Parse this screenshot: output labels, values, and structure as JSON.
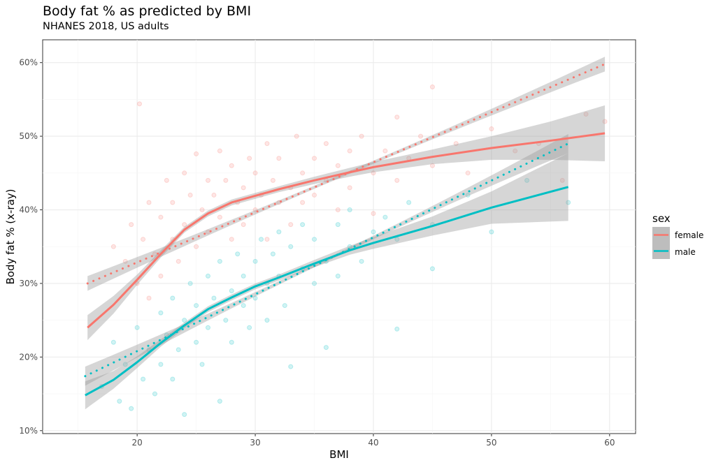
{
  "chart_data": {
    "type": "scatter",
    "title": "Body fat % as predicted by BMI",
    "subtitle": "NHANES 2018, US adults",
    "xlabel": "BMI",
    "ylabel": "Body fat % (x-ray)",
    "xlim": [
      12,
      62.2
    ],
    "ylim": [
      9.6,
      63.1
    ],
    "xticks": [
      20,
      30,
      40,
      50,
      60
    ],
    "yticks": [
      10,
      20,
      30,
      40,
      50,
      60
    ],
    "ytick_labels": [
      "10%",
      "20%",
      "30%",
      "40%",
      "50%",
      "60%"
    ],
    "grid": true,
    "legend": {
      "title": "sex",
      "position": "right",
      "entries": [
        "female",
        "male"
      ]
    },
    "series": [
      {
        "name": "female",
        "color": "#F8766D",
        "points": [
          [
            18,
            35
          ],
          [
            19,
            33
          ],
          [
            19.5,
            38
          ],
          [
            20,
            30
          ],
          [
            20.2,
            54.4
          ],
          [
            20.5,
            36
          ],
          [
            21,
            41
          ],
          [
            21,
            28
          ],
          [
            21.5,
            34
          ],
          [
            22,
            39
          ],
          [
            22,
            31
          ],
          [
            22.5,
            44
          ],
          [
            23,
            36
          ],
          [
            23,
            41
          ],
          [
            23.5,
            33
          ],
          [
            24,
            45
          ],
          [
            24,
            38
          ],
          [
            24.5,
            42
          ],
          [
            25,
            35
          ],
          [
            25,
            47.6
          ],
          [
            25.5,
            40
          ],
          [
            26,
            44
          ],
          [
            26,
            37
          ],
          [
            26.5,
            42
          ],
          [
            27,
            48
          ],
          [
            27,
            39
          ],
          [
            27.5,
            44
          ],
          [
            28,
            36
          ],
          [
            28,
            46
          ],
          [
            28.5,
            41
          ],
          [
            29,
            43
          ],
          [
            29,
            38
          ],
          [
            29.5,
            47
          ],
          [
            30,
            40
          ],
          [
            30,
            45
          ],
          [
            30.5,
            42
          ],
          [
            31,
            49
          ],
          [
            31,
            36
          ],
          [
            31.5,
            44
          ],
          [
            32,
            41
          ],
          [
            32,
            47
          ],
          [
            33,
            43
          ],
          [
            33,
            38
          ],
          [
            33.5,
            50
          ],
          [
            34,
            45
          ],
          [
            34,
            41
          ],
          [
            35,
            47
          ],
          [
            35,
            42
          ],
          [
            36,
            49
          ],
          [
            36,
            44
          ],
          [
            37,
            40
          ],
          [
            37,
            46
          ],
          [
            38,
            48
          ],
          [
            38,
            43
          ],
          [
            39,
            50
          ],
          [
            40,
            45
          ],
          [
            40,
            39.5
          ],
          [
            41,
            48
          ],
          [
            42,
            52.6
          ],
          [
            42,
            44
          ],
          [
            43,
            47
          ],
          [
            44,
            50
          ],
          [
            45,
            56.7
          ],
          [
            45,
            46
          ],
          [
            47,
            49
          ],
          [
            48,
            45
          ],
          [
            50,
            51
          ],
          [
            52,
            48
          ],
          [
            54,
            49
          ],
          [
            56,
            44
          ],
          [
            58,
            53
          ],
          [
            59.6,
            52
          ]
        ],
        "loess": [
          [
            15.8,
            24.0
          ],
          [
            18,
            27.1
          ],
          [
            20,
            30.5
          ],
          [
            22,
            34.0
          ],
          [
            24,
            37.3
          ],
          [
            26,
            39.5
          ],
          [
            28,
            41.0
          ],
          [
            30,
            41.9
          ],
          [
            32,
            42.8
          ],
          [
            35,
            44.0
          ],
          [
            38,
            45.1
          ],
          [
            40,
            45.8
          ],
          [
            45,
            47.2
          ],
          [
            50,
            48.4
          ],
          [
            55,
            49.4
          ],
          [
            59.6,
            50.4
          ]
        ],
        "loess_band": [
          [
            1.7
          ],
          [
            1.2
          ],
          [
            0.7
          ],
          [
            0.5
          ],
          [
            0.4
          ],
          [
            0.4
          ],
          [
            0.4
          ],
          [
            0.4
          ],
          [
            0.4
          ],
          [
            0.5
          ],
          [
            0.6
          ],
          [
            0.7
          ],
          [
            1.0
          ],
          [
            1.6
          ],
          [
            2.6
          ],
          [
            3.8
          ]
        ],
        "linear": {
          "x": [
            15.8,
            59.6
          ],
          "y": [
            30.0,
            59.8
          ],
          "band_ends": 1.0
        }
      },
      {
        "name": "male",
        "color": "#00BFC4",
        "points": [
          [
            17,
            16
          ],
          [
            18,
            22
          ],
          [
            18.5,
            14
          ],
          [
            19,
            19
          ],
          [
            19.5,
            13
          ],
          [
            20,
            24
          ],
          [
            20.5,
            17
          ],
          [
            21,
            21
          ],
          [
            21.5,
            15
          ],
          [
            22,
            26
          ],
          [
            22,
            19
          ],
          [
            22.5,
            23
          ],
          [
            23,
            17
          ],
          [
            23,
            28
          ],
          [
            23.5,
            21
          ],
          [
            24,
            25
          ],
          [
            24,
            12.2
          ],
          [
            24.5,
            30
          ],
          [
            25,
            22
          ],
          [
            25,
            27
          ],
          [
            25.5,
            19
          ],
          [
            26,
            31
          ],
          [
            26,
            24
          ],
          [
            26.5,
            28
          ],
          [
            27,
            14
          ],
          [
            27,
            33
          ],
          [
            27.5,
            25
          ],
          [
            28,
            29
          ],
          [
            28,
            22
          ],
          [
            28.5,
            34
          ],
          [
            29,
            27
          ],
          [
            29,
            31
          ],
          [
            29.5,
            24
          ],
          [
            30,
            33
          ],
          [
            30,
            28
          ],
          [
            30.5,
            36
          ],
          [
            31,
            30
          ],
          [
            31,
            25
          ],
          [
            31.5,
            34
          ],
          [
            32,
            31
          ],
          [
            32,
            37
          ],
          [
            32.5,
            27
          ],
          [
            33,
            35
          ],
          [
            33,
            18.7
          ],
          [
            34,
            32
          ],
          [
            34,
            38
          ],
          [
            35,
            30
          ],
          [
            35,
            36
          ],
          [
            36,
            33
          ],
          [
            36,
            21.3
          ],
          [
            37,
            38
          ],
          [
            37,
            31
          ],
          [
            38,
            35
          ],
          [
            38,
            40
          ],
          [
            39,
            33
          ],
          [
            40,
            37
          ],
          [
            41,
            39
          ],
          [
            42,
            23.8
          ],
          [
            42,
            36
          ],
          [
            43,
            41
          ],
          [
            45,
            32
          ],
          [
            45,
            38
          ],
          [
            48,
            42
          ],
          [
            50,
            37
          ],
          [
            53,
            44
          ],
          [
            56.5,
            41
          ]
        ],
        "loess": [
          [
            15.6,
            14.8
          ],
          [
            18,
            16.9
          ],
          [
            20,
            19.3
          ],
          [
            22,
            21.9
          ],
          [
            24,
            24.3
          ],
          [
            26,
            26.5
          ],
          [
            28,
            28.1
          ],
          [
            30,
            29.6
          ],
          [
            32,
            30.8
          ],
          [
            35,
            32.7
          ],
          [
            38,
            34.5
          ],
          [
            40,
            35.5
          ],
          [
            45,
            37.8
          ],
          [
            50,
            40.3
          ],
          [
            56.5,
            43.1
          ]
        ],
        "loess_band": [
          [
            1.9
          ],
          [
            1.2
          ],
          [
            0.8
          ],
          [
            0.5
          ],
          [
            0.4
          ],
          [
            0.4
          ],
          [
            0.4
          ],
          [
            0.4
          ],
          [
            0.4
          ],
          [
            0.5
          ],
          [
            0.6
          ],
          [
            0.8
          ],
          [
            1.3
          ],
          [
            2.2
          ],
          [
            4.6
          ]
        ],
        "linear": {
          "x": [
            15.6,
            56.5
          ],
          "y": [
            17.4,
            49.0
          ],
          "band_ends": 1.3
        }
      }
    ]
  }
}
